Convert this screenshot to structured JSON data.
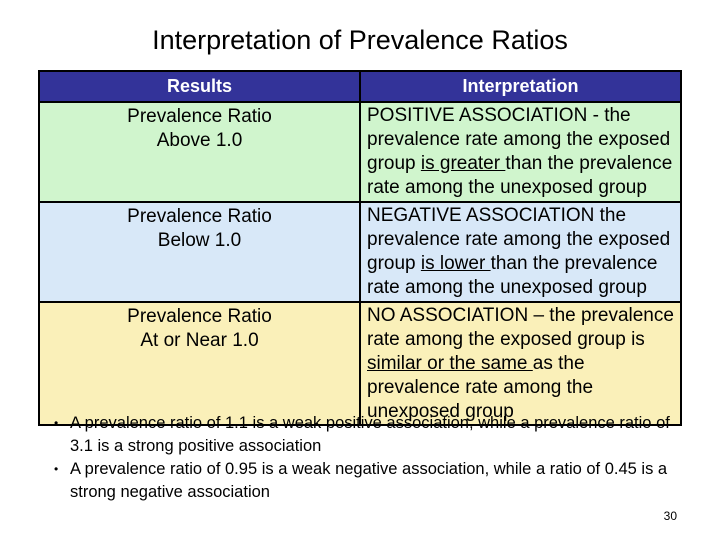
{
  "slide": {
    "title": "Interpretation of Prevalence Ratios",
    "page_number": "30",
    "bullet_glyph": "•"
  },
  "table": {
    "headers": [
      "Results",
      "Interpretation"
    ],
    "rows": [
      {
        "result": "Prevalence Ratio\nAbove 1.0",
        "interp_before": "POSITIVE ASSOCIATION - the prevalence rate among the exposed group ",
        "interp_underline": "is greater ",
        "interp_after": "than the prevalence rate among the unexposed group",
        "bg": "#d0f5cd"
      },
      {
        "result": "Prevalence Ratio\nBelow 1.0",
        "interp_before": "NEGATIVE ASSOCIATION the prevalence rate among the exposed group ",
        "interp_underline": "is lower ",
        "interp_after": "than the prevalence rate among the unexposed group",
        "bg": "#d8e8f8"
      },
      {
        "result": "Prevalence Ratio\nAt or Near 1.0",
        "interp_before": "NO ASSOCIATION – the prevalence rate among the exposed group is ",
        "interp_underline": "similar or the same ",
        "interp_after": "as the prevalence rate among the unexposed group",
        "bg": "#faf0b9"
      }
    ]
  },
  "bullets": [
    "A prevalence ratio of 1.1 is a weak positive association, while a prevalence ratio of 3.1 is a strong positive association",
    "A prevalence ratio of 0.95 is a weak negative association, while a ratio of 0.45 is a strong negative association"
  ],
  "colors": {
    "header_bg": "#333399",
    "header_text": "#ffffff",
    "row_positive_bg": "#d0f5cd",
    "row_negative_bg": "#d8e8f8",
    "row_none_bg": "#faf0b9",
    "border": "#000000"
  }
}
